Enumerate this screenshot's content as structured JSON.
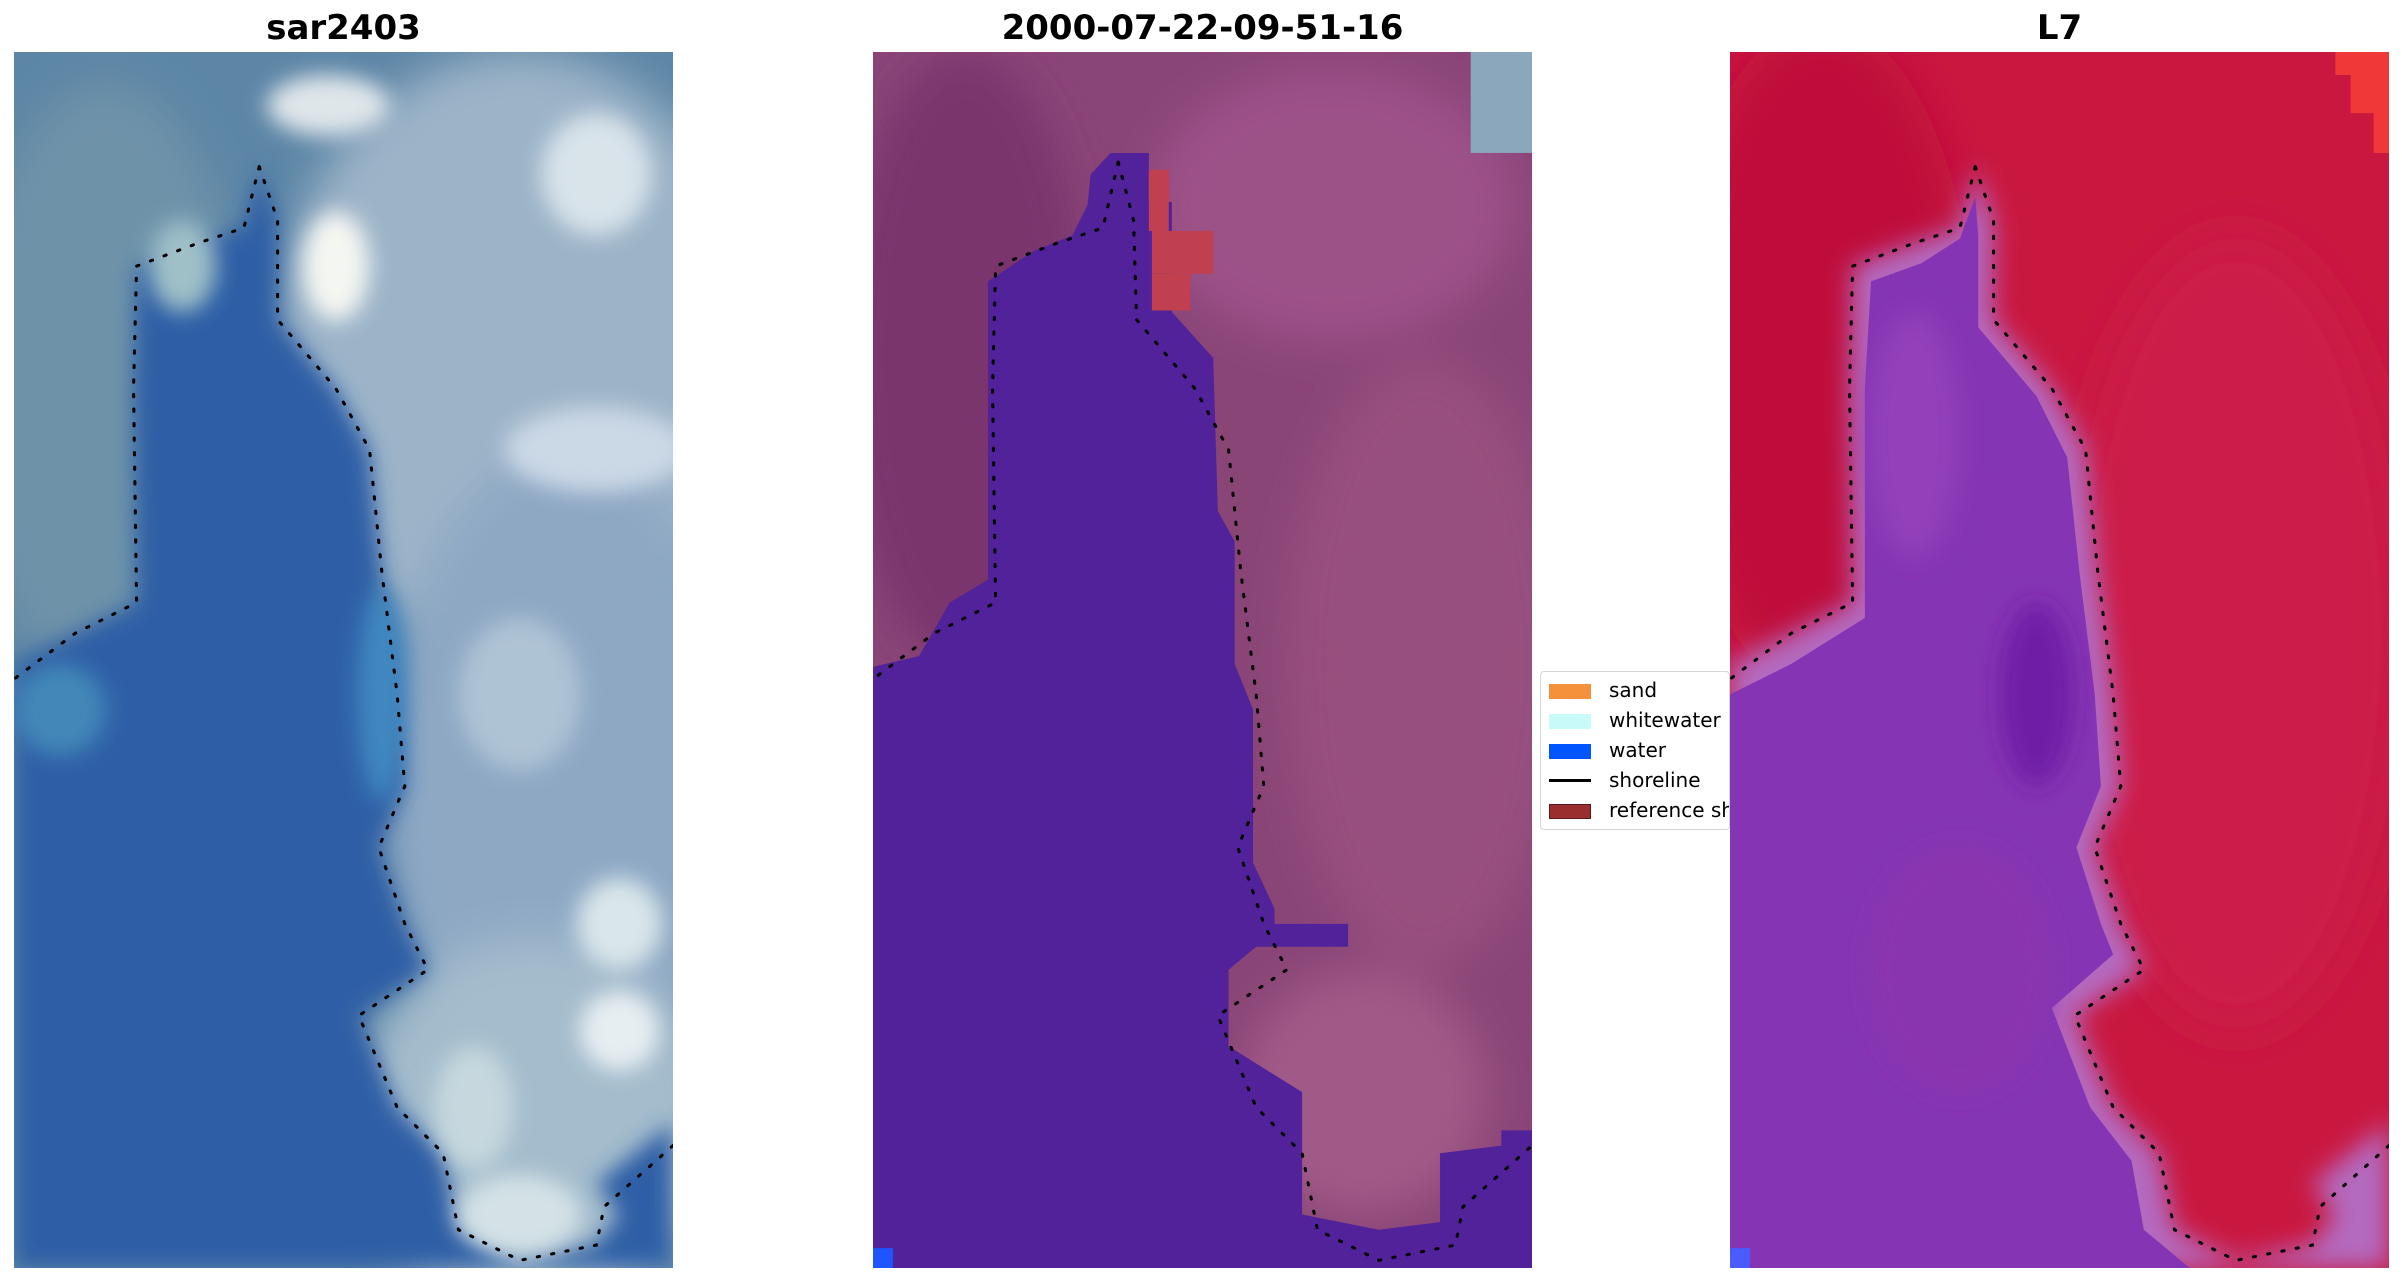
{
  "panels": [
    {
      "title": "sar2403",
      "description": "RGB satellite image with cloud cover and blue water"
    },
    {
      "title": "2000-07-22-09-51-16",
      "description": "Classified image with water in purple and land in mauve"
    },
    {
      "title": "L7",
      "description": "Water-index image with water in purple and land in crimson"
    }
  ],
  "legend": {
    "items": [
      {
        "label": "sand",
        "color": "#f5913a",
        "kind": "patch"
      },
      {
        "label": "whitewater",
        "color": "#c8fafa",
        "kind": "patch"
      },
      {
        "label": "water",
        "color": "#0055ff",
        "kind": "patch"
      },
      {
        "label": "shoreline",
        "color": "#000000",
        "kind": "line"
      },
      {
        "label": "reference shoreline",
        "color": "#9a2e2e",
        "kind": "patch"
      }
    ]
  },
  "colors": {
    "rgb_water": "#2d5fa6",
    "rgb_cloud": "#bfd0df",
    "classified_water": "#52229a",
    "classified_land": "#934a7c",
    "index_water": "#8535b3",
    "index_land": "#c71a45"
  }
}
